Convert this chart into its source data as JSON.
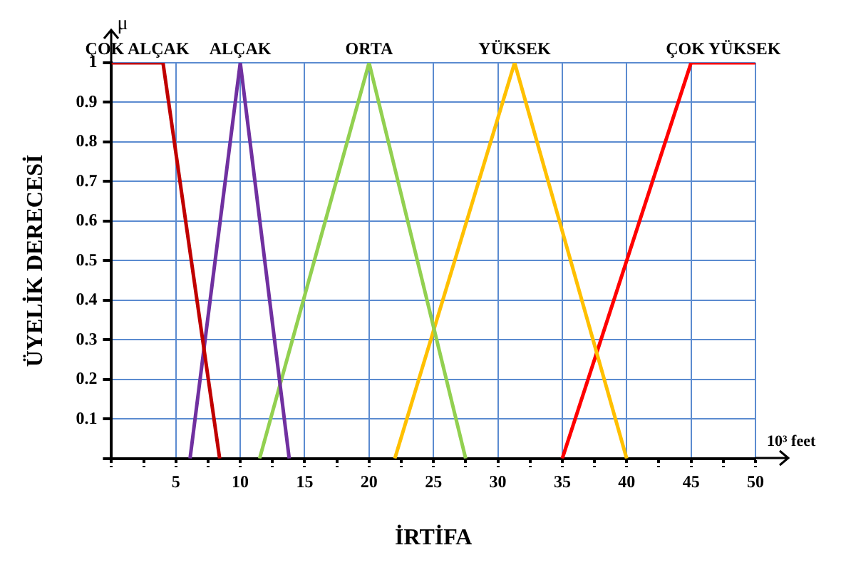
{
  "chart_data": {
    "type": "line",
    "xlabel": "İRTİFA",
    "ylabel": "ÜYELİK DERECESİ",
    "annotations": [
      "μ",
      "10³ feet"
    ],
    "xlim": [
      0,
      50
    ],
    "ylim": [
      0,
      1
    ],
    "xticks": [
      {
        "value": 0,
        "label": null
      },
      {
        "value": 2.5,
        "label": null
      },
      5,
      {
        "value": 7.5,
        "label": null
      },
      10,
      {
        "value": 12.5,
        "label": null
      },
      15,
      {
        "value": 17.5,
        "label": null
      },
      20,
      {
        "value": 22.5,
        "label": null
      },
      25,
      {
        "value": 27.5,
        "label": null
      },
      30,
      {
        "value": 32.5,
        "label": null
      },
      35,
      {
        "value": 37.5,
        "label": null
      },
      40,
      {
        "value": 42.5,
        "label": null
      },
      45,
      {
        "value": 47.5,
        "label": null
      },
      50
    ],
    "yticks": [
      {
        "value": 0,
        "label": null
      },
      0.1,
      0.2,
      0.3,
      0.4,
      0.5,
      0.6,
      0.7,
      0.8,
      0.9,
      1
    ],
    "grid": true,
    "legend": false,
    "marker": "none",
    "line_style": "solid",
    "series": [
      {
        "name": "ÇOK ALÇAK",
        "color": "#c00000",
        "x": [
          0,
          4,
          8.4
        ],
        "values": [
          1,
          1,
          0
        ]
      },
      {
        "name": "ALÇAK",
        "color": "#7030a0",
        "x": [
          6.1,
          10,
          13.8
        ],
        "values": [
          0,
          1,
          0
        ]
      },
      {
        "name": "ORTA",
        "color": "#92d050",
        "x": [
          11.5,
          20,
          27.5
        ],
        "values": [
          0,
          1,
          0
        ]
      },
      {
        "name": "YÜKSEK",
        "color": "#ffc000",
        "x": [
          22,
          31.3,
          40
        ],
        "values": [
          0,
          1,
          0
        ]
      },
      {
        "name": "ÇOK YÜKSEK",
        "color": "#ff0000",
        "x": [
          35,
          45,
          50
        ],
        "values": [
          0,
          1,
          1
        ]
      }
    ]
  }
}
